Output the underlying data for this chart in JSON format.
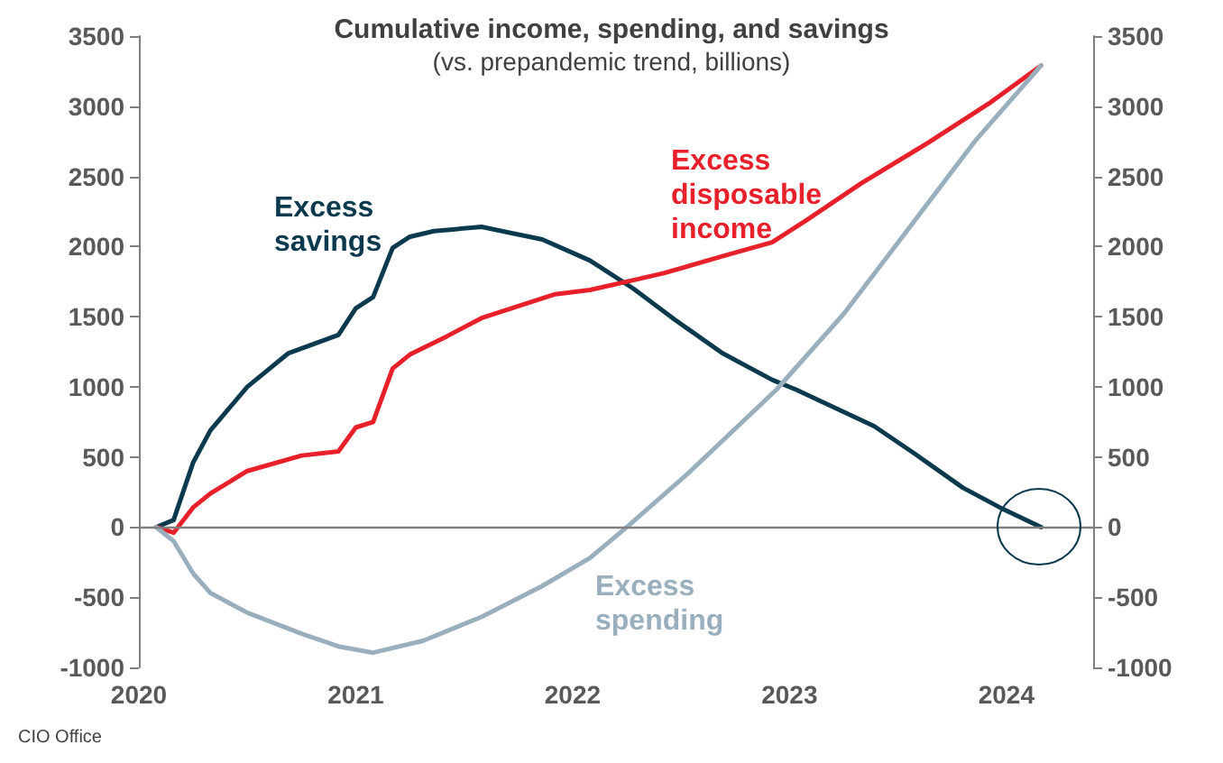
{
  "chart_data": {
    "type": "line",
    "title": "Cumulative income, spending, and savings",
    "subtitle": "(vs. prepandemic trend, billions)",
    "annotations": [
      "CIO Office"
    ],
    "xlim": [
      2020,
      2024.4
    ],
    "xticks": [
      2020,
      2021,
      2022,
      2023,
      2024
    ],
    "ylim": [
      -1000,
      3500
    ],
    "yticks": [
      -1000,
      -500,
      0,
      500,
      1000,
      1500,
      2000,
      2500,
      3000,
      3500
    ],
    "y2lim": [
      -1000,
      3500
    ],
    "y2ticks": [
      -1000,
      -500,
      0,
      500,
      1000,
      1500,
      2000,
      2500,
      3000,
      3500
    ],
    "grid": false,
    "legend": false,
    "marker": "none",
    "line_style": "solid",
    "ref_lines": [
      {
        "axis": "y",
        "value": 0,
        "label": null,
        "color": "#7f7f7f"
      }
    ],
    "series": [
      {
        "name": "Excess savings",
        "color": "#0b3a4f",
        "x": [
          2020.08,
          2020.16,
          2020.25,
          2020.33,
          2020.5,
          2020.69,
          2020.92,
          2021.0,
          2021.08,
          2021.17,
          2021.25,
          2021.36,
          2021.58,
          2021.86,
          2022.08,
          2022.28,
          2022.47,
          2022.69,
          2022.92,
          2023.03,
          2023.39,
          2023.58,
          2023.8,
          2023.97,
          2024.16
        ],
        "values": [
          0,
          50,
          460,
          690,
          1000,
          1240,
          1370,
          1560,
          1640,
          1990,
          2070,
          2110,
          2140,
          2050,
          1900,
          1700,
          1480,
          1240,
          1050,
          980,
          720,
          520,
          280,
          140,
          0
        ]
      },
      {
        "name": "Excess disposable income",
        "color": "#e8202a",
        "x": [
          2020.08,
          2020.16,
          2020.25,
          2020.33,
          2020.5,
          2020.75,
          2020.92,
          2021.0,
          2021.08,
          2021.17,
          2021.25,
          2021.42,
          2021.58,
          2021.92,
          2022.08,
          2022.28,
          2022.42,
          2022.69,
          2022.92,
          2023.08,
          2023.33,
          2023.64,
          2023.92,
          2024.16
        ],
        "values": [
          0,
          -40,
          140,
          240,
          400,
          510,
          540,
          710,
          750,
          1130,
          1230,
          1360,
          1490,
          1660,
          1690,
          1760,
          1810,
          1930,
          2030,
          2190,
          2450,
          2740,
          3020,
          3290
        ]
      },
      {
        "name": "Excess spending",
        "color": "#9aafbd",
        "x": [
          2020.08,
          2020.16,
          2020.25,
          2020.33,
          2020.5,
          2020.75,
          2020.92,
          2021.08,
          2021.31,
          2021.58,
          2021.86,
          2022.08,
          2022.25,
          2022.53,
          2022.94,
          2023.25,
          2023.58,
          2023.86,
          2024.16
        ],
        "values": [
          0,
          -100,
          -330,
          -470,
          -610,
          -760,
          -850,
          -895,
          -810,
          -640,
          -420,
          -220,
          0,
          380,
          980,
          1520,
          2190,
          2760,
          3290
        ]
      }
    ]
  }
}
